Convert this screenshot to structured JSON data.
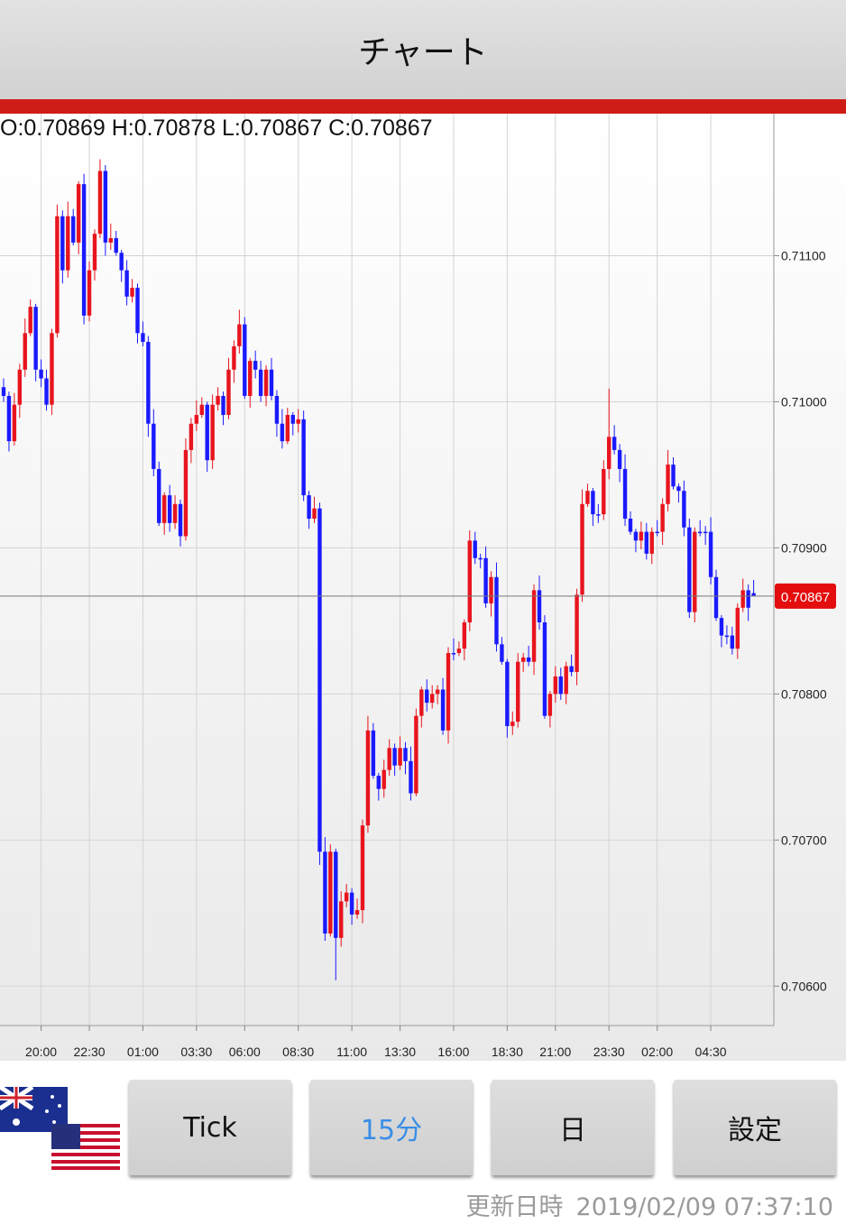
{
  "header": {
    "title": "チャート"
  },
  "ohlc_text": "O:0.70869 H:0.70878 L:0.70867 C:0.70867",
  "chart_data": {
    "type": "candlestick",
    "up_color": "#e8141e",
    "down_color": "#1a1aff",
    "grid": true,
    "ylim": [
      0.70573,
      0.71196
    ],
    "yticks": [
      {
        "value": 0.711,
        "label": "0.71100"
      },
      {
        "value": 0.71,
        "label": "0.71000"
      },
      {
        "value": 0.709,
        "label": "0.70900"
      },
      {
        "value": 0.708,
        "label": "0.70800"
      },
      {
        "value": 0.707,
        "label": "0.70700"
      },
      {
        "value": 0.706,
        "label": "0.70600"
      }
    ],
    "last_price": 0.70867,
    "categories": [
      null,
      null,
      null,
      null,
      null,
      null,
      null,
      "20:00",
      null,
      null,
      null,
      null,
      null,
      null,
      null,
      null,
      "22:30",
      null,
      null,
      null,
      null,
      null,
      null,
      null,
      null,
      null,
      "01:00",
      null,
      null,
      null,
      null,
      null,
      null,
      null,
      null,
      null,
      "03:30",
      null,
      null,
      null,
      null,
      null,
      null,
      null,
      null,
      "06:00",
      null,
      null,
      null,
      null,
      null,
      null,
      null,
      null,
      null,
      "08:30",
      null,
      null,
      null,
      null,
      null,
      null,
      null,
      null,
      null,
      "11:00",
      null,
      null,
      null,
      null,
      null,
      null,
      null,
      null,
      "13:30",
      null,
      null,
      null,
      null,
      null,
      null,
      null,
      null,
      null,
      "16:00",
      null,
      null,
      null,
      null,
      null,
      null,
      null,
      null,
      null,
      "18:30",
      null,
      null,
      null,
      null,
      null,
      null,
      null,
      null,
      "21:00",
      null,
      null,
      null,
      null,
      null,
      null,
      null,
      null,
      null,
      "23:30",
      null,
      null,
      null,
      null,
      null,
      null,
      null,
      null,
      "02:00",
      null,
      null,
      null,
      null,
      null,
      null,
      null,
      null,
      null,
      "04:30",
      null,
      null,
      null,
      null,
      null,
      null,
      null,
      null
    ],
    "open": [
      0.7101,
      0.71004,
      0.70973,
      0.70998,
      0.71022,
      0.71047,
      0.71065,
      0.71022,
      0.71016,
      0.70998,
      0.71047,
      0.71127,
      0.7109,
      0.71127,
      0.71109,
      0.71149,
      0.71059,
      0.7109,
      0.71115,
      0.71158,
      0.71109,
      0.71112,
      0.71102,
      0.7109,
      0.71072,
      0.71078,
      0.71047,
      0.71041,
      0.70985,
      0.70954,
      0.70917,
      0.70936,
      0.70917,
      0.7093,
      0.70908,
      0.70967,
      0.70985,
      0.70991,
      0.70998,
      0.7096,
      0.70998,
      0.71004,
      0.70991,
      0.71022,
      0.71038,
      0.71053,
      0.71004,
      0.71028,
      0.71022,
      0.71004,
      0.71022,
      0.71004,
      0.70985,
      0.70973,
      0.70991,
      0.70985,
      0.70988,
      0.70936,
      0.7092,
      0.70927,
      0.70692,
      0.70636,
      0.70692,
      0.70633,
      0.70658,
      0.70664,
      0.70649,
      0.70652,
      0.7071,
      0.70775,
      0.70744,
      0.70735,
      0.70748,
      0.70763,
      0.70751,
      0.70763,
      0.70754,
      0.70732,
      0.70785,
      0.70803,
      0.70794,
      0.708,
      0.70803,
      0.70775,
      0.70828,
      0.70828,
      0.70831,
      0.70849,
      0.70905,
      0.70893,
      0.70893,
      0.70862,
      0.7088,
      0.70834,
      0.70822,
      0.70778,
      0.70781,
      0.70822,
      0.70825,
      0.70822,
      0.70871,
      0.70849,
      0.70785,
      0.708,
      0.70812,
      0.708,
      0.70819,
      0.70815,
      0.70868,
      0.7093,
      0.70939,
      0.70923,
      0.70923,
      0.70954,
      0.70976,
      0.70967,
      0.70954,
      0.7092,
      0.70911,
      0.70905,
      0.70911,
      0.70896,
      0.70911,
      0.70911,
      0.7093,
      0.70957,
      0.70942,
      0.70939,
      0.70914,
      0.70856,
      0.70911,
      0.70911,
      0.70911,
      0.7088,
      0.70852,
      0.7084,
      0.7084,
      0.70831,
      0.70859,
      0.70871,
      0.70869
    ],
    "high": [
      0.71016,
      0.71007,
      0.71006,
      0.71026,
      0.71057,
      0.7107,
      0.71067,
      0.71029,
      0.71022,
      0.7105,
      0.71135,
      0.71131,
      0.71137,
      0.71132,
      0.71151,
      0.71156,
      0.71096,
      0.71118,
      0.71166,
      0.71162,
      0.71122,
      0.71117,
      0.71104,
      0.71097,
      0.71084,
      0.71081,
      0.71055,
      0.71045,
      0.70995,
      0.70959,
      0.70938,
      0.70943,
      0.70936,
      0.70933,
      0.70975,
      0.70989,
      0.71001,
      0.71003,
      0.71,
      0.71005,
      0.7101,
      0.71007,
      0.7103,
      0.71042,
      0.71063,
      0.71058,
      0.7103,
      0.71035,
      0.71028,
      0.71025,
      0.7103,
      0.71008,
      0.70995,
      0.70996,
      0.70993,
      0.70995,
      0.70994,
      0.70939,
      0.70935,
      0.70931,
      0.70702,
      0.70697,
      0.70694,
      0.70665,
      0.7067,
      0.70667,
      0.7066,
      0.70714,
      0.70785,
      0.7078,
      0.70746,
      0.70755,
      0.70769,
      0.70766,
      0.70771,
      0.70767,
      0.70764,
      0.7079,
      0.70805,
      0.7081,
      0.70806,
      0.70806,
      0.70811,
      0.70832,
      0.70838,
      0.70836,
      0.70851,
      0.70912,
      0.70911,
      0.70896,
      0.70901,
      0.70884,
      0.7089,
      0.70839,
      0.70824,
      0.70788,
      0.70828,
      0.70828,
      0.70833,
      0.70875,
      0.70881,
      0.70854,
      0.70802,
      0.70819,
      0.70818,
      0.70822,
      0.70827,
      0.70872,
      0.7094,
      0.70944,
      0.70941,
      0.7093,
      0.7096,
      0.71009,
      0.70984,
      0.70971,
      0.70964,
      0.70925,
      0.70913,
      0.70918,
      0.70917,
      0.70914,
      0.70919,
      0.70934,
      0.70967,
      0.70962,
      0.70944,
      0.70946,
      0.7092,
      0.70914,
      0.70919,
      0.70915,
      0.70921,
      0.70885,
      0.70854,
      0.70847,
      0.70846,
      0.70862,
      0.70879,
      0.70875,
      0.70878
    ],
    "low": [
      0.71,
      0.70966,
      0.7097,
      0.70989,
      0.71017,
      0.71045,
      0.71014,
      0.7101,
      0.70994,
      0.70991,
      0.71044,
      0.71081,
      0.71085,
      0.71107,
      0.71101,
      0.71053,
      0.71055,
      0.71083,
      0.71112,
      0.711,
      0.71104,
      0.711,
      0.71082,
      0.71066,
      0.71068,
      0.7104,
      0.71038,
      0.70976,
      0.70949,
      0.70915,
      0.70909,
      0.70911,
      0.70913,
      0.70901,
      0.70905,
      0.70958,
      0.7098,
      0.70989,
      0.70952,
      0.70954,
      0.70994,
      0.70984,
      0.70988,
      0.71013,
      0.71033,
      0.71002,
      0.70996,
      0.71016,
      0.71,
      0.70997,
      0.71001,
      0.70976,
      0.70968,
      0.70971,
      0.70977,
      0.70979,
      0.70932,
      0.70913,
      0.70917,
      0.70683,
      0.70631,
      0.70634,
      0.70604,
      0.70627,
      0.70654,
      0.70642,
      0.70646,
      0.70643,
      0.70705,
      0.70742,
      0.70727,
      0.70729,
      0.70744,
      0.70744,
      0.70748,
      0.70745,
      0.70727,
      0.7073,
      0.70777,
      0.70788,
      0.7079,
      0.70793,
      0.70772,
      0.70766,
      0.70823,
      0.70826,
      0.70823,
      0.70843,
      0.70889,
      0.70886,
      0.70859,
      0.70853,
      0.70829,
      0.7082,
      0.7077,
      0.70772,
      0.70777,
      0.70815,
      0.70819,
      0.70813,
      0.70844,
      0.70783,
      0.70777,
      0.70794,
      0.70796,
      0.70793,
      0.70812,
      0.70806,
      0.70863,
      0.70928,
      0.70915,
      0.70917,
      0.70919,
      0.70947,
      0.70964,
      0.70945,
      0.70915,
      0.70909,
      0.70897,
      0.70899,
      0.70892,
      0.70889,
      0.70908,
      0.70902,
      0.70925,
      0.7094,
      0.70931,
      0.70908,
      0.70852,
      0.70849,
      0.70908,
      0.70902,
      0.70875,
      0.7085,
      0.70832,
      0.70834,
      0.70827,
      0.70824,
      0.70856,
      0.7085,
      0.70867
    ],
    "close": [
      0.71004,
      0.70973,
      0.70998,
      0.71022,
      0.71047,
      0.71065,
      0.71022,
      0.71016,
      0.70998,
      0.71047,
      0.71127,
      0.7109,
      0.71127,
      0.71109,
      0.71149,
      0.71059,
      0.7109,
      0.71115,
      0.71158,
      0.71109,
      0.71112,
      0.71102,
      0.7109,
      0.71072,
      0.71078,
      0.71047,
      0.71041,
      0.70985,
      0.70954,
      0.70917,
      0.70936,
      0.70917,
      0.7093,
      0.70908,
      0.70967,
      0.70985,
      0.70991,
      0.70998,
      0.7096,
      0.70998,
      0.71004,
      0.70991,
      0.71022,
      0.71038,
      0.71053,
      0.71004,
      0.71028,
      0.71022,
      0.71004,
      0.71022,
      0.71004,
      0.70985,
      0.70973,
      0.70991,
      0.70985,
      0.70988,
      0.70936,
      0.7092,
      0.70927,
      0.70692,
      0.70636,
      0.70692,
      0.70633,
      0.70658,
      0.70664,
      0.70649,
      0.70652,
      0.7071,
      0.70775,
      0.70744,
      0.70735,
      0.70748,
      0.70763,
      0.70751,
      0.70763,
      0.70754,
      0.70732,
      0.70785,
      0.70803,
      0.70794,
      0.708,
      0.70803,
      0.70775,
      0.70828,
      0.70828,
      0.70831,
      0.70849,
      0.70905,
      0.70893,
      0.70893,
      0.70862,
      0.7088,
      0.70834,
      0.70822,
      0.70778,
      0.70781,
      0.70822,
      0.70825,
      0.70822,
      0.70871,
      0.70849,
      0.70785,
      0.708,
      0.70812,
      0.708,
      0.70819,
      0.70815,
      0.70868,
      0.7093,
      0.70939,
      0.70923,
      0.70923,
      0.70954,
      0.70976,
      0.70967,
      0.70954,
      0.7092,
      0.70911,
      0.70905,
      0.70911,
      0.70896,
      0.70911,
      0.70911,
      0.7093,
      0.70957,
      0.70942,
      0.70939,
      0.70914,
      0.70856,
      0.70911,
      0.70911,
      0.70911,
      0.7088,
      0.70852,
      0.7084,
      0.7084,
      0.70831,
      0.70859,
      0.70871,
      0.70859,
      0.70867
    ]
  },
  "buttons": [
    "Tick",
    "15分",
    "日",
    "設定"
  ],
  "footer": {
    "label": "更新日時",
    "timestamp": "2019/02/09 07:37:10"
  }
}
